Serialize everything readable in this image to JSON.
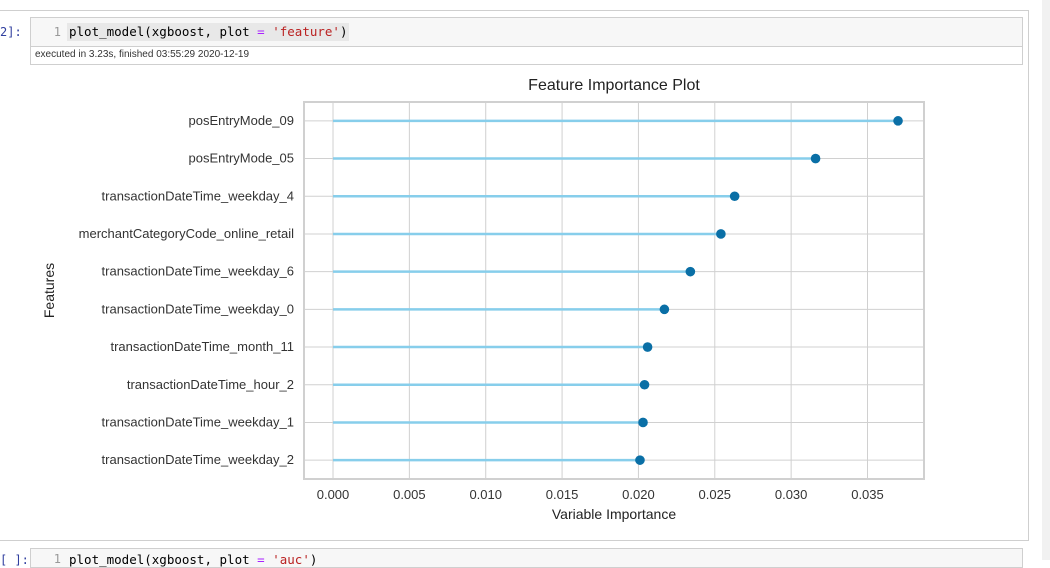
{
  "cell": {
    "prompt": "2]:",
    "line_number": "1",
    "code": {
      "fn": "plot_model(xgboost, plot ",
      "op": "=",
      "space": " ",
      "str": "'feature'",
      "close": ")"
    },
    "execution_info": "executed in 3.23s, finished 03:55:29 2020-12-19"
  },
  "next_cell": {
    "prompt": "[ ]:",
    "line_number": "1",
    "code": {
      "fn": "plot_model(xgboost, plot ",
      "op": "=",
      "space": " ",
      "str": "'auc'",
      "close": ")"
    }
  },
  "chart_data": {
    "type": "scatter",
    "style": "lollipop",
    "title": "Feature Importance Plot",
    "xlabel": "Variable Importance",
    "ylabel": "Features",
    "xlim": [
      -0.0019,
      0.0387
    ],
    "xticks": [
      0.0,
      0.005,
      0.01,
      0.015,
      0.02,
      0.025,
      0.03,
      0.035
    ],
    "xtick_labels": [
      "0.000",
      "0.005",
      "0.010",
      "0.015",
      "0.020",
      "0.025",
      "0.030",
      "0.035"
    ],
    "grid": true,
    "categories": [
      "posEntryMode_09",
      "posEntryMode_05",
      "transactionDateTime_weekday_4",
      "merchantCategoryCode_online_retail",
      "transactionDateTime_weekday_6",
      "transactionDateTime_weekday_0",
      "transactionDateTime_month_11",
      "transactionDateTime_hour_2",
      "transactionDateTime_weekday_1",
      "transactionDateTime_weekday_2"
    ],
    "values": [
      0.037,
      0.0316,
      0.0263,
      0.0254,
      0.0234,
      0.0217,
      0.0206,
      0.0204,
      0.0203,
      0.0201
    ],
    "colors": {
      "stem": "#87ceeb",
      "marker": "#0a6fa6",
      "grid": "#d0d0d0",
      "axis_text": "#333333"
    }
  }
}
